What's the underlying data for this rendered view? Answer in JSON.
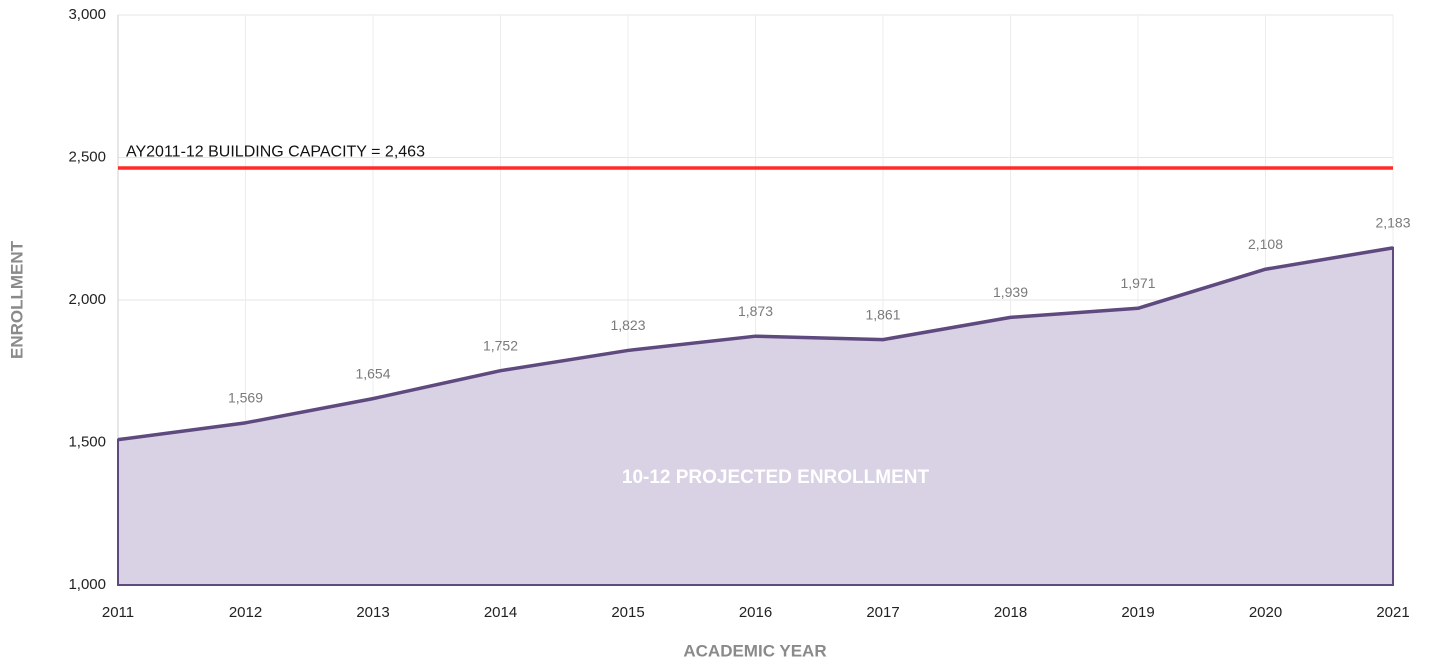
{
  "chart_data": {
    "type": "area",
    "xlabel": "ACADEMIC YEAR",
    "ylabel": "ENROLLMENT",
    "x": [
      2011,
      2012,
      2013,
      2014,
      2015,
      2016,
      2017,
      2018,
      2019,
      2020,
      2021
    ],
    "series": [
      {
        "name": "10-12 PROJECTED ENROLLMENT",
        "color": "#5e4a7e",
        "fill": "#d9d1e4",
        "values": [
          1510,
          1569,
          1654,
          1752,
          1823,
          1873,
          1861,
          1939,
          1971,
          2108,
          2183
        ],
        "value_labels": [
          null,
          "1,569",
          "1,654",
          "1,752",
          "1,823",
          "1,873",
          "1,861",
          "1,939",
          "1,971",
          "2,108",
          "2,183"
        ]
      }
    ],
    "annotations": [
      {
        "text": "AY2011-12 BUILDING CAPACITY = 2,463",
        "value": 2463,
        "color": "#ff2a2a"
      }
    ],
    "xlim": [
      2011,
      2021
    ],
    "xticks": [
      2011,
      2012,
      2013,
      2014,
      2015,
      2016,
      2017,
      2018,
      2019,
      2020,
      2021
    ],
    "ylim": [
      1000,
      3000
    ],
    "yticks": [
      {
        "value": 1000,
        "label": "1,000"
      },
      {
        "value": 1500,
        "label": "1,500"
      },
      {
        "value": 2000,
        "label": "2,000"
      },
      {
        "value": 2500,
        "label": "2,500"
      },
      {
        "value": 3000,
        "label": "3,000"
      }
    ],
    "grid": true
  }
}
